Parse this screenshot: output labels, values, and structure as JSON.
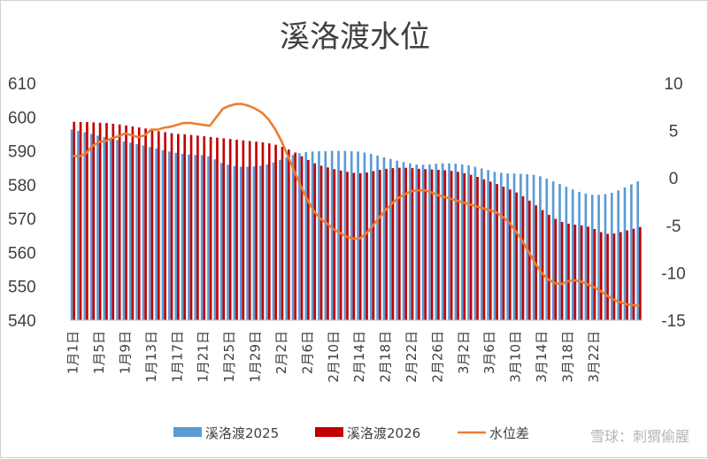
{
  "chart_data": {
    "type": "bar",
    "title": "溪洛渡水位",
    "xlabel": "",
    "ylabel": "",
    "ylim": [
      540,
      610
    ],
    "y2lim": [
      -15,
      10
    ],
    "y_ticks": [
      610,
      600,
      590,
      580,
      570,
      560,
      550,
      540
    ],
    "y2_ticks": [
      10,
      5,
      0,
      -5,
      -10,
      -15
    ],
    "x_tick_labels": [
      "1月1日",
      "1月5日",
      "1月9日",
      "1月13日",
      "1月17日",
      "1月21日",
      "1月25日",
      "1月29日",
      "2月2日",
      "2月6日",
      "2月10日",
      "2月14日",
      "2月18日",
      "2月22日",
      "2月26日",
      "3月2日",
      "3月6日",
      "3月10日",
      "3月14日",
      "3月18日",
      "3月22日"
    ],
    "grid": false,
    "legend_position": "bottom",
    "series": [
      {
        "name": "溪洛渡2025",
        "type": "bar",
        "axis": "left",
        "color": "#5b9bd5",
        "values": [
          596.3,
          595.9,
          595.5,
          595.0,
          594.5,
          594.1,
          593.6,
          593.2,
          592.8,
          592.4,
          592.0,
          591.6,
          591.1,
          590.7,
          590.2,
          589.8,
          589.4,
          589.1,
          588.9,
          588.8,
          588.7,
          588.4,
          587.5,
          586.4,
          585.9,
          585.5,
          585.3,
          585.3,
          585.4,
          585.6,
          586.0,
          586.6,
          587.3,
          588.1,
          588.8,
          589.3,
          589.6,
          589.8,
          589.9,
          589.9,
          590.0,
          590.0,
          590.0,
          589.9,
          589.8,
          589.5,
          589.1,
          588.6,
          588.1,
          587.6,
          587.1,
          586.7,
          586.3,
          586.0,
          585.9,
          586.0,
          586.2,
          586.3,
          586.3,
          586.2,
          586.0,
          585.7,
          585.3,
          584.8,
          584.3,
          583.8,
          583.5,
          583.3,
          583.3,
          583.2,
          583.1,
          582.9,
          582.5,
          581.8,
          581.0,
          580.2,
          579.4,
          578.6,
          577.9,
          577.4,
          577.0,
          577.0,
          577.2,
          577.6,
          578.3,
          579.2,
          580.1,
          581.0
        ]
      },
      {
        "name": "溪洛渡2026",
        "type": "bar",
        "axis": "left",
        "color": "#c00000",
        "values": [
          598.6,
          598.5,
          598.5,
          598.4,
          598.3,
          598.2,
          598.0,
          597.8,
          597.5,
          597.2,
          596.9,
          596.6,
          596.2,
          595.8,
          595.5,
          595.2,
          595.0,
          594.9,
          594.7,
          594.5,
          594.3,
          594.1,
          593.9,
          593.7,
          593.5,
          593.3,
          593.1,
          592.9,
          592.7,
          592.5,
          592.2,
          591.8,
          591.2,
          590.4,
          589.5,
          588.4,
          587.3,
          586.3,
          585.6,
          585.1,
          584.6,
          584.2,
          583.8,
          583.5,
          583.4,
          583.6,
          584.0,
          584.4,
          584.7,
          584.9,
          585.0,
          585.0,
          584.9,
          584.7,
          584.6,
          584.5,
          584.4,
          584.3,
          584.1,
          583.8,
          583.4,
          582.9,
          582.3,
          581.6,
          580.9,
          580.2,
          579.4,
          578.6,
          577.7,
          576.6,
          575.3,
          573.9,
          572.5,
          571.1,
          569.9,
          569.0,
          568.5,
          568.2,
          568.0,
          567.6,
          566.9,
          566.0,
          565.5,
          565.6,
          566.0,
          566.5,
          567.0,
          567.5
        ]
      },
      {
        "name": "水位差",
        "type": "line",
        "axis": "right",
        "color": "#ed7d31",
        "values": [
          2.3,
          2.3,
          2.6,
          3.4,
          3.8,
          3.9,
          4.2,
          4.4,
          4.7,
          4.5,
          4.3,
          4.5,
          5.1,
          5.1,
          5.3,
          5.4,
          5.6,
          5.8,
          5.8,
          5.7,
          5.6,
          5.5,
          6.4,
          7.3,
          7.6,
          7.8,
          7.8,
          7.6,
          7.3,
          6.9,
          6.2,
          5.2,
          3.9,
          2.3,
          0.7,
          -0.9,
          -2.3,
          -3.5,
          -4.3,
          -4.8,
          -5.4,
          -5.8,
          -6.2,
          -6.4,
          -6.4,
          -5.9,
          -5.1,
          -4.2,
          -3.4,
          -2.7,
          -2.1,
          -1.7,
          -1.4,
          -1.3,
          -1.3,
          -1.5,
          -1.8,
          -2.0,
          -2.2,
          -2.4,
          -2.6,
          -2.8,
          -3.0,
          -3.2,
          -3.4,
          -3.6,
          -4.1,
          -4.7,
          -5.6,
          -6.6,
          -7.8,
          -9.0,
          -10.0,
          -10.7,
          -11.1,
          -11.2,
          -10.9,
          -10.8,
          -10.9,
          -11.2,
          -11.5,
          -11.9,
          -12.4,
          -12.8,
          -13.1,
          -13.3,
          -13.4,
          -13.5
        ]
      }
    ]
  },
  "watermark": "雪球：刺猬偷腥"
}
